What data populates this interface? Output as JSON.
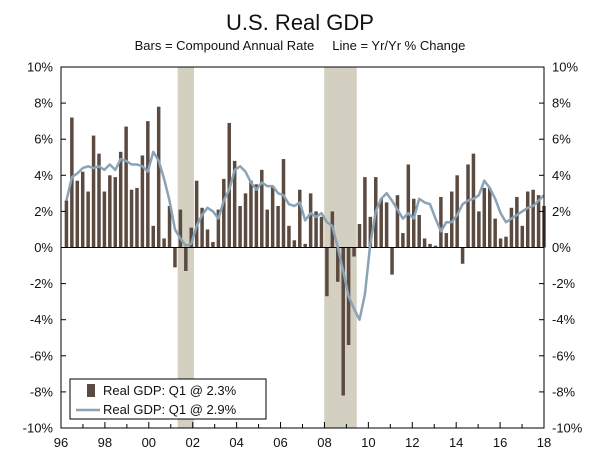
{
  "chart_data": {
    "type": "bar",
    "title": "U.S. Real GDP",
    "subtitle": "Bars = Compound Annual Rate     Line = Yr/Yr % Change",
    "x_start": "1996 Q1",
    "x_tick_labels": [
      "96",
      "98",
      "00",
      "02",
      "04",
      "06",
      "08",
      "10",
      "12",
      "14",
      "16",
      "18"
    ],
    "y_tick_labels": [
      "10%",
      "8%",
      "6%",
      "4%",
      "2%",
      "0%",
      "-2%",
      "-4%",
      "-6%",
      "-8%",
      "-10%"
    ],
    "ylim": [
      -10,
      10
    ],
    "grid": false,
    "legend_position": "bottom-left",
    "recessions": [
      {
        "start": "2001 Q2",
        "end": "2001 Q4"
      },
      {
        "start": "2008 Q1",
        "end": "2009 Q2"
      }
    ],
    "colors": {
      "bars": "#5b4a40",
      "line": "#8aa3b6",
      "recession": "#d3cfc1"
    },
    "series": [
      {
        "name": "Real GDP: Q1 @ 2.3%",
        "kind": "bar",
        "values": [
          2.6,
          7.2,
          3.7,
          4.2,
          3.1,
          6.2,
          5.2,
          3.1,
          4.0,
          3.9,
          5.3,
          6.7,
          3.2,
          3.3,
          5.1,
          7.0,
          1.2,
          7.8,
          0.5,
          2.3,
          -1.1,
          2.1,
          -1.3,
          1.1,
          3.7,
          2.2,
          1.0,
          0.3,
          2.1,
          3.8,
          6.9,
          4.8,
          2.3,
          3.0,
          3.7,
          3.5,
          4.3,
          2.1,
          3.4,
          2.3,
          4.9,
          1.2,
          0.4,
          3.2,
          0.2,
          3.0,
          2.0,
          1.7,
          -2.7,
          2.0,
          -1.9,
          -8.2,
          -5.4,
          -0.5,
          1.3,
          3.9,
          1.7,
          3.9,
          2.7,
          2.5,
          -1.5,
          2.9,
          0.8,
          4.6,
          2.7,
          1.8,
          0.5,
          0.2,
          0.1,
          2.8,
          0.8,
          3.1,
          4.0,
          -0.9,
          4.6,
          5.2,
          2.0,
          3.3,
          3.3,
          1.6,
          0.5,
          0.6,
          2.2,
          2.8,
          1.2,
          3.1,
          3.2,
          2.9,
          2.3
        ]
      },
      {
        "name": "Real GDP: Q1 @ 2.9%",
        "kind": "line",
        "values": [
          2.6,
          3.9,
          4.1,
          4.4,
          4.5,
          4.4,
          4.5,
          4.3,
          4.6,
          4.3,
          4.9,
          4.8,
          4.6,
          4.6,
          4.5,
          4.2,
          5.3,
          4.8,
          3.8,
          2.6,
          1.0,
          0.5,
          0.1,
          0.2,
          1.2,
          1.8,
          2.2,
          2.0,
          1.6,
          2.6,
          3.2,
          4.3,
          4.5,
          4.2,
          3.6,
          3.2,
          3.6,
          3.4,
          3.4,
          3.0,
          2.9,
          2.4,
          2.3,
          2.5,
          1.5,
          1.9,
          1.7,
          1.9,
          1.4,
          1.2,
          0.0,
          -1.3,
          -2.7,
          -3.4,
          -4.0,
          -2.6,
          0.2,
          2.0,
          2.7,
          3.0,
          2.6,
          2.1,
          1.6,
          1.9,
          1.6,
          2.7,
          2.5,
          2.4,
          1.6,
          0.9,
          1.4,
          1.4,
          1.8,
          2.4,
          2.6,
          2.7,
          2.9,
          3.7,
          3.3,
          2.7,
          1.9,
          1.4,
          1.6,
          1.8,
          2.0,
          2.2,
          2.3,
          2.6,
          2.9
        ]
      }
    ]
  }
}
